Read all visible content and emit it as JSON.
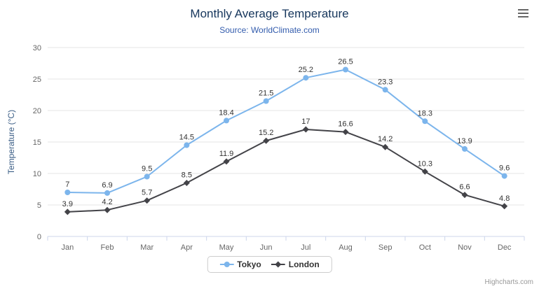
{
  "chart_data": {
    "type": "line",
    "title": "Monthly Average Temperature",
    "subtitle": "Source: WorldClimate.com",
    "categories": [
      "Jan",
      "Feb",
      "Mar",
      "Apr",
      "May",
      "Jun",
      "Jul",
      "Aug",
      "Sep",
      "Oct",
      "Nov",
      "Dec"
    ],
    "series": [
      {
        "name": "Tokyo",
        "color": "#7cb5ec",
        "marker": "circle",
        "values": [
          7,
          6.9,
          9.5,
          14.5,
          18.4,
          21.5,
          25.2,
          26.5,
          23.3,
          18.3,
          13.9,
          9.6
        ]
      },
      {
        "name": "London",
        "color": "#434348",
        "marker": "diamond",
        "values": [
          3.9,
          4.2,
          5.7,
          8.5,
          11.9,
          15.2,
          17,
          16.6,
          14.2,
          10.3,
          6.6,
          4.8
        ]
      }
    ],
    "xlabel": "",
    "ylabel": "Temperature (°C)",
    "ylim": [
      0,
      30
    ],
    "ytick_interval": 5,
    "grid": true,
    "legend_position": "bottom-center",
    "data_labels": true
  },
  "legend": {
    "items": [
      "Tokyo",
      "London"
    ]
  },
  "credits": {
    "label": "Highcharts.com"
  },
  "icons": {
    "menu": "hamburger-menu-icon"
  },
  "colors": {
    "title": "#16365c",
    "subtitle": "#335cad",
    "y_axis_title": "#3a5d85",
    "axis_labels": "#666666",
    "data_labels": "#333333",
    "gridline": "#e6e6e6",
    "axis_line": "#ccd6eb",
    "tokyo": "#7cb5ec",
    "london": "#434348",
    "legend_border": "#cccccc",
    "credits": "#999999"
  }
}
